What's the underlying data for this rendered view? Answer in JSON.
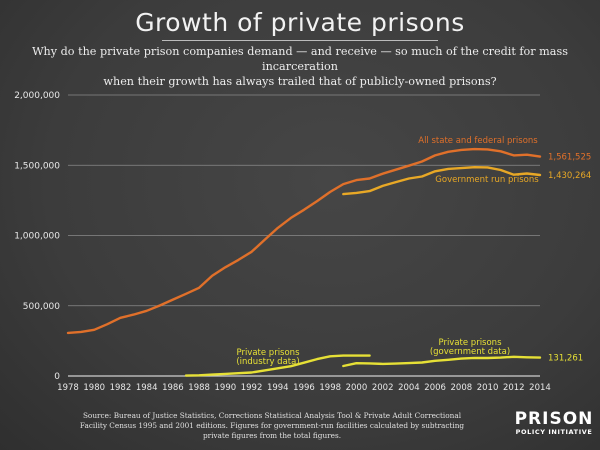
{
  "header": {
    "title": "Growth of private prisons",
    "subtitle_line1": "Why do the private prison companies demand — and receive — so much of the credit for mass incarceration",
    "subtitle_line2": "when their growth has always trailed that of publicly-owned prisons?"
  },
  "footer": {
    "source_line1": "Source: Bureau of Justice Statistics, Corrections Statistical Analysis Tool & Private Adult Correctional",
    "source_line2": "Facility Census 1995 and 2001 editions. Figures for government-run facilities calculated by subtracting",
    "source_line3": "private figures from the total figures.",
    "logo_main": "PRISON",
    "logo_sub": "POLICY INITIATIVE"
  },
  "colors": {
    "total": "#e0702a",
    "government": "#e8a826",
    "private": "#e6e036",
    "grid": "#8a8a8a"
  },
  "chart_data": {
    "type": "line",
    "title": "Growth of private prisons",
    "xlabel": "",
    "ylabel": "",
    "xlim": [
      1978,
      2014
    ],
    "ylim": [
      0,
      2000000
    ],
    "grid": true,
    "x_ticks": [
      "1978",
      "1980",
      "1982",
      "1984",
      "1986",
      "1988",
      "1990",
      "1992",
      "1994",
      "1996",
      "1998",
      "2000",
      "2002",
      "2004",
      "2006",
      "2008",
      "2010",
      "2012",
      "2014"
    ],
    "y_ticks": [
      {
        "value": 0,
        "label": "0"
      },
      {
        "value": 500000,
        "label": "500,000"
      },
      {
        "value": 1000000,
        "label": "1,000,000"
      },
      {
        "value": 1500000,
        "label": "1,500,000"
      },
      {
        "value": 2000000,
        "label": "2,000,000"
      }
    ],
    "series": [
      {
        "name": "All state and federal prisons",
        "color_key": "total",
        "end_label": "1,561,525",
        "x": [
          1978,
          1979,
          1980,
          1981,
          1982,
          1983,
          1984,
          1985,
          1986,
          1987,
          1988,
          1989,
          1990,
          1991,
          1992,
          1993,
          1994,
          1995,
          1996,
          1997,
          1998,
          1999,
          2000,
          2001,
          2002,
          2003,
          2004,
          2005,
          2006,
          2007,
          2008,
          2009,
          2010,
          2011,
          2012,
          2013,
          2014
        ],
        "values": [
          307000,
          314000,
          329000,
          369000,
          414000,
          437000,
          464000,
          502000,
          544000,
          585000,
          628000,
          713000,
          774000,
          826000,
          884000,
          970000,
          1054000,
          1125000,
          1183000,
          1245000,
          1310000,
          1366000,
          1394000,
          1406000,
          1440000,
          1468000,
          1497000,
          1527000,
          1570000,
          1596000,
          1609000,
          1615000,
          1613000,
          1599000,
          1570000,
          1575000,
          1561525
        ]
      },
      {
        "name": "Government run prisons",
        "color_key": "government",
        "end_label": "1,430,264",
        "x": [
          1999,
          2000,
          2001,
          2002,
          2003,
          2004,
          2005,
          2006,
          2007,
          2008,
          2009,
          2010,
          2011,
          2012,
          2013,
          2014
        ],
        "values": [
          1295000,
          1303000,
          1316000,
          1353000,
          1380000,
          1406000,
          1420000,
          1457000,
          1474000,
          1480000,
          1486000,
          1485000,
          1466000,
          1433000,
          1441000,
          1430264
        ]
      },
      {
        "name": "Private prisons (industry data)",
        "color_key": "private",
        "x": [
          1987,
          1988,
          1989,
          1990,
          1991,
          1992,
          1993,
          1994,
          1995,
          1996,
          1997,
          1998,
          1999,
          2000,
          2001
        ],
        "values": [
          3000,
          5000,
          10000,
          15000,
          20000,
          25000,
          40000,
          55000,
          70000,
          95000,
          120000,
          140000,
          145000,
          145000,
          145000
        ]
      },
      {
        "name": "Private prisons (government data)",
        "color_key": "private",
        "end_label": "131,261",
        "x": [
          1999,
          2000,
          2001,
          2002,
          2003,
          2004,
          2005,
          2006,
          2007,
          2008,
          2009,
          2010,
          2011,
          2012,
          2013,
          2014
        ],
        "values": [
          71000,
          91000,
          90000,
          86000,
          88000,
          92000,
          96000,
          108000,
          115000,
          124000,
          129000,
          128000,
          131000,
          137000,
          133000,
          131261
        ]
      }
    ],
    "annotations": [
      {
        "text": "All state and federal prisons",
        "series": 0
      },
      {
        "text": "Government run prisons",
        "series": 1
      },
      {
        "text": "Private prisons",
        "sub": "(industry data)",
        "series": 2
      },
      {
        "text": "Private prisons",
        "sub": "(government data)",
        "series": 3
      }
    ]
  }
}
